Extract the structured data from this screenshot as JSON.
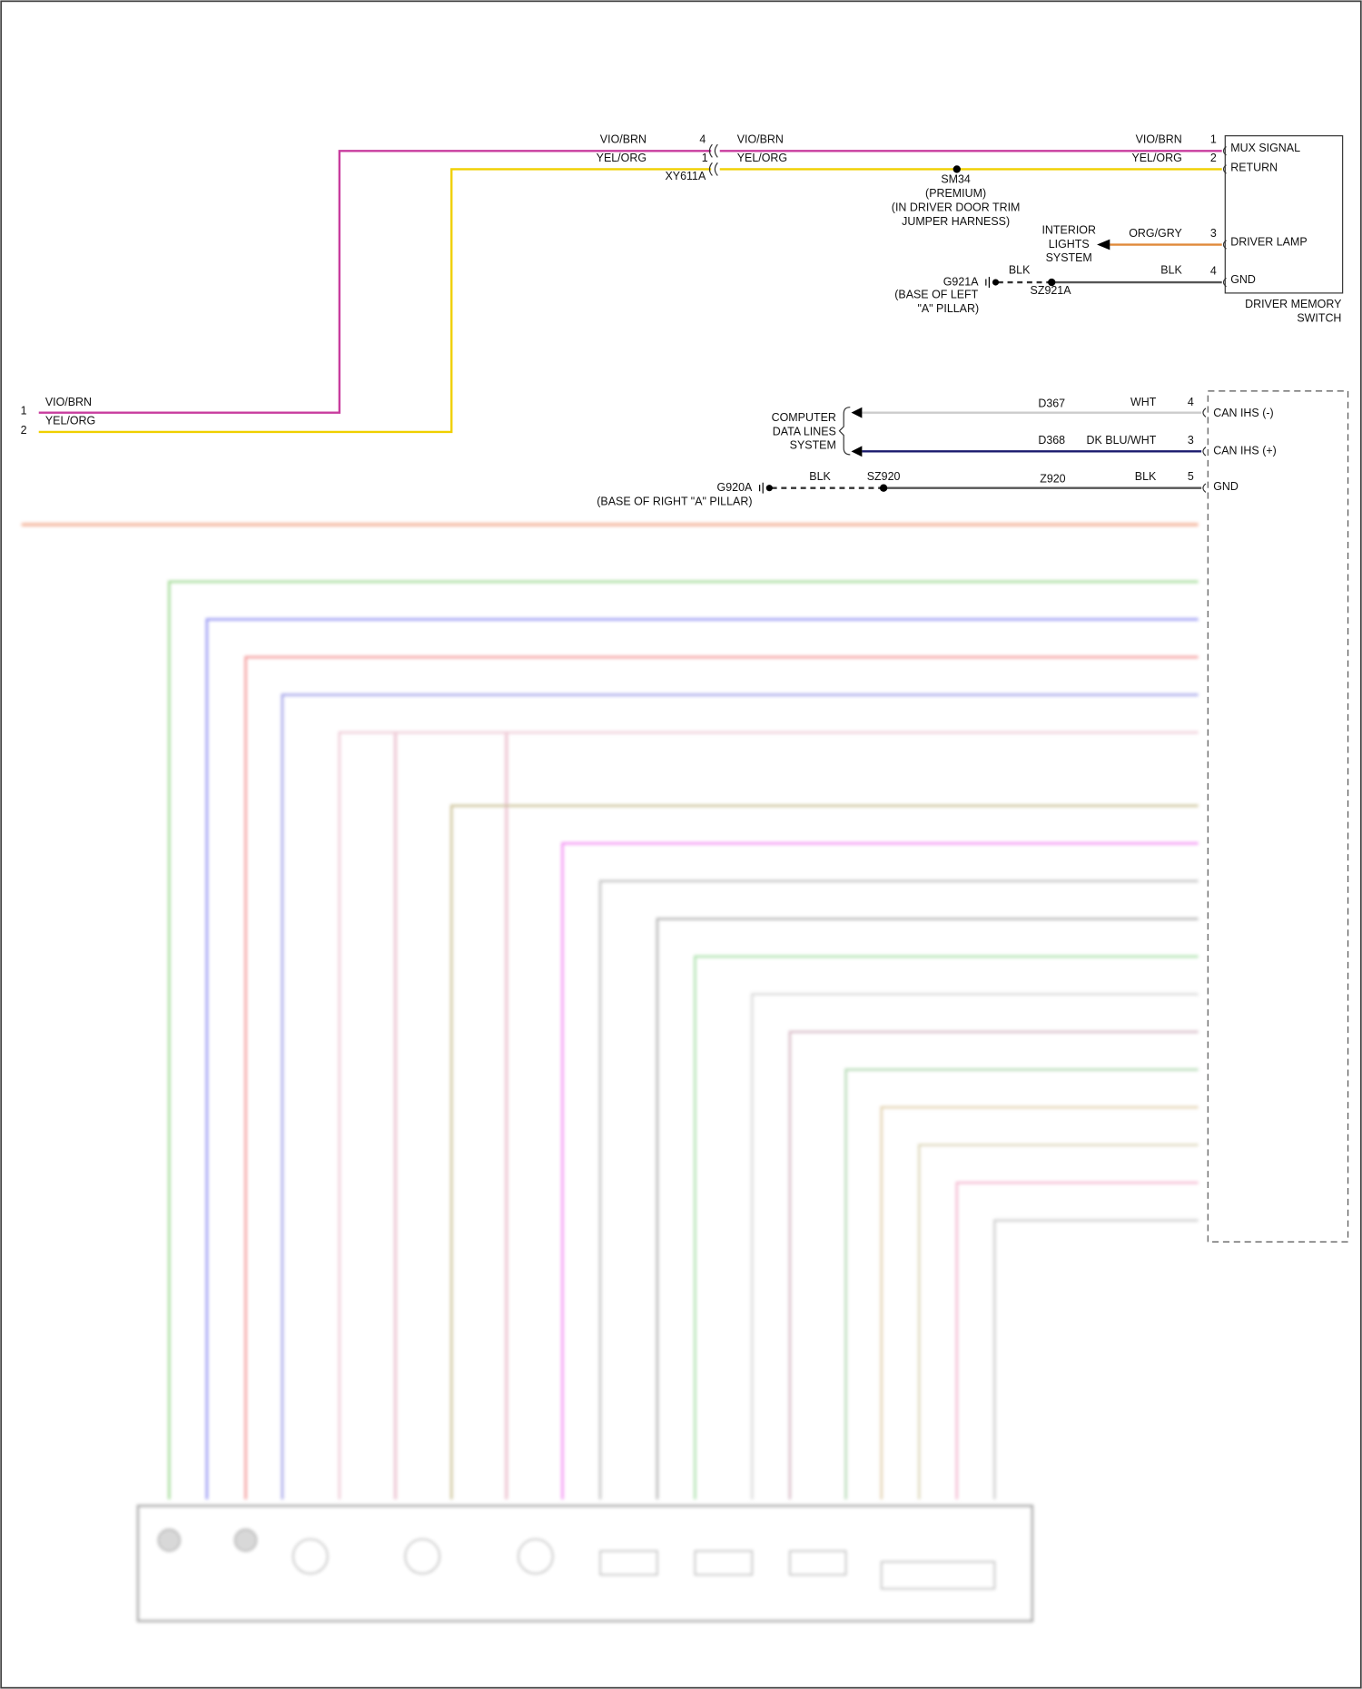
{
  "left_connector": {
    "pins": [
      "1",
      "2"
    ],
    "wires": [
      "VIO/BRN",
      "YEL/ORG"
    ]
  },
  "inline_connector": {
    "name": "XY611A",
    "left_pins": [
      "4",
      "1"
    ],
    "left_wires": [
      "VIO/BRN",
      "YEL/ORG"
    ],
    "right_wires": [
      "VIO/BRN",
      "YEL/ORG"
    ]
  },
  "splice_sm34": {
    "lines": [
      "SM34",
      "(PREMIUM)",
      "(IN DRIVER DOOR TRIM",
      "JUMPER HARNESS)"
    ]
  },
  "driver_memory_switch": {
    "name_lines": [
      "DRIVER MEMORY",
      "SWITCH"
    ],
    "pins": [
      {
        "pin": "1",
        "wire": "VIO/BRN",
        "label": "MUX SIGNAL"
      },
      {
        "pin": "2",
        "wire": "YEL/ORG",
        "label": "RETURN"
      },
      {
        "pin": "3",
        "wire": "ORG/GRY",
        "label": "DRIVER LAMP"
      },
      {
        "pin": "4",
        "wire": "BLK",
        "label": "GND"
      }
    ]
  },
  "interior_lights": {
    "lines": [
      "INTERIOR",
      "LIGHTS",
      "SYSTEM"
    ]
  },
  "ground_g921a": {
    "name": "G921A",
    "wire": "BLK",
    "splice": "SZ921A",
    "location_lines": [
      "(BASE OF LEFT",
      "\"A\" PILLAR)"
    ]
  },
  "data_lines": {
    "lines": [
      "COMPUTER",
      "DATA LINES",
      "SYSTEM"
    ]
  },
  "right_connector": {
    "pins": [
      {
        "circuit": "D367",
        "wire": "WHT",
        "pin": "4",
        "label": "CAN IHS (-)"
      },
      {
        "circuit": "D368",
        "wire": "DK BLU/WHT",
        "pin": "3",
        "label": "CAN IHS (+)"
      },
      {
        "circuit": "Z920",
        "wire": "BLK",
        "pin": "5",
        "label": "GND"
      }
    ]
  },
  "ground_g920a": {
    "name": "G920A",
    "wire": "BLK",
    "splice": "SZ920",
    "location": "(BASE OF RIGHT \"A\" PILLAR)"
  }
}
